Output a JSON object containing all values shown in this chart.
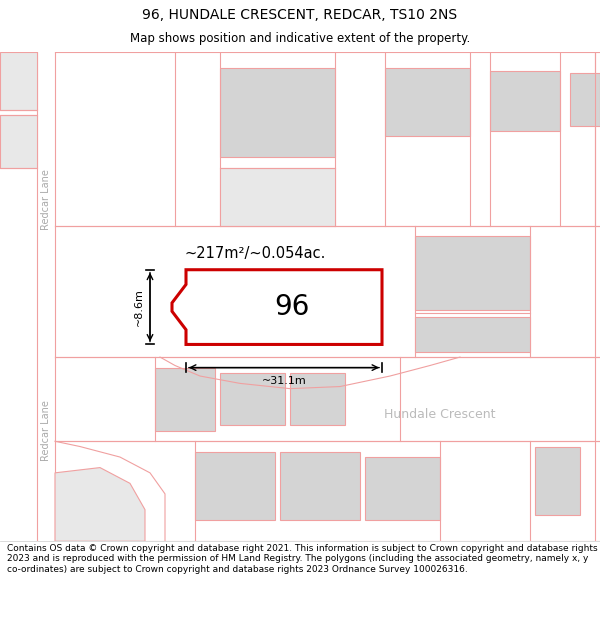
{
  "title_line1": "96, HUNDALE CRESCENT, REDCAR, TS10 2NS",
  "title_line2": "Map shows position and indicative extent of the property.",
  "footer_text": "Contains OS data © Crown copyright and database right 2021. This information is subject to Crown copyright and database rights 2023 and is reproduced with the permission of HM Land Registry. The polygons (including the associated geometry, namely x, y co-ordinates) are subject to Crown copyright and database rights 2023 Ordnance Survey 100026316.",
  "area_text": "~217m²/~0.054ac.",
  "width_text": "~31.1m",
  "height_text": "~8.6m",
  "plot_number": "96",
  "street_name": "Hundale Crescent",
  "road_name_left": "Redcar Lane",
  "map_bg": "#ffffff",
  "plot_fill": "#ffffff",
  "plot_border_color": "#cc0000",
  "pink": "#f0a0a0",
  "building_fill": "#d4d4d4",
  "title_fontsize": 10,
  "subtitle_fontsize": 8.5,
  "footer_fontsize": 6.5
}
